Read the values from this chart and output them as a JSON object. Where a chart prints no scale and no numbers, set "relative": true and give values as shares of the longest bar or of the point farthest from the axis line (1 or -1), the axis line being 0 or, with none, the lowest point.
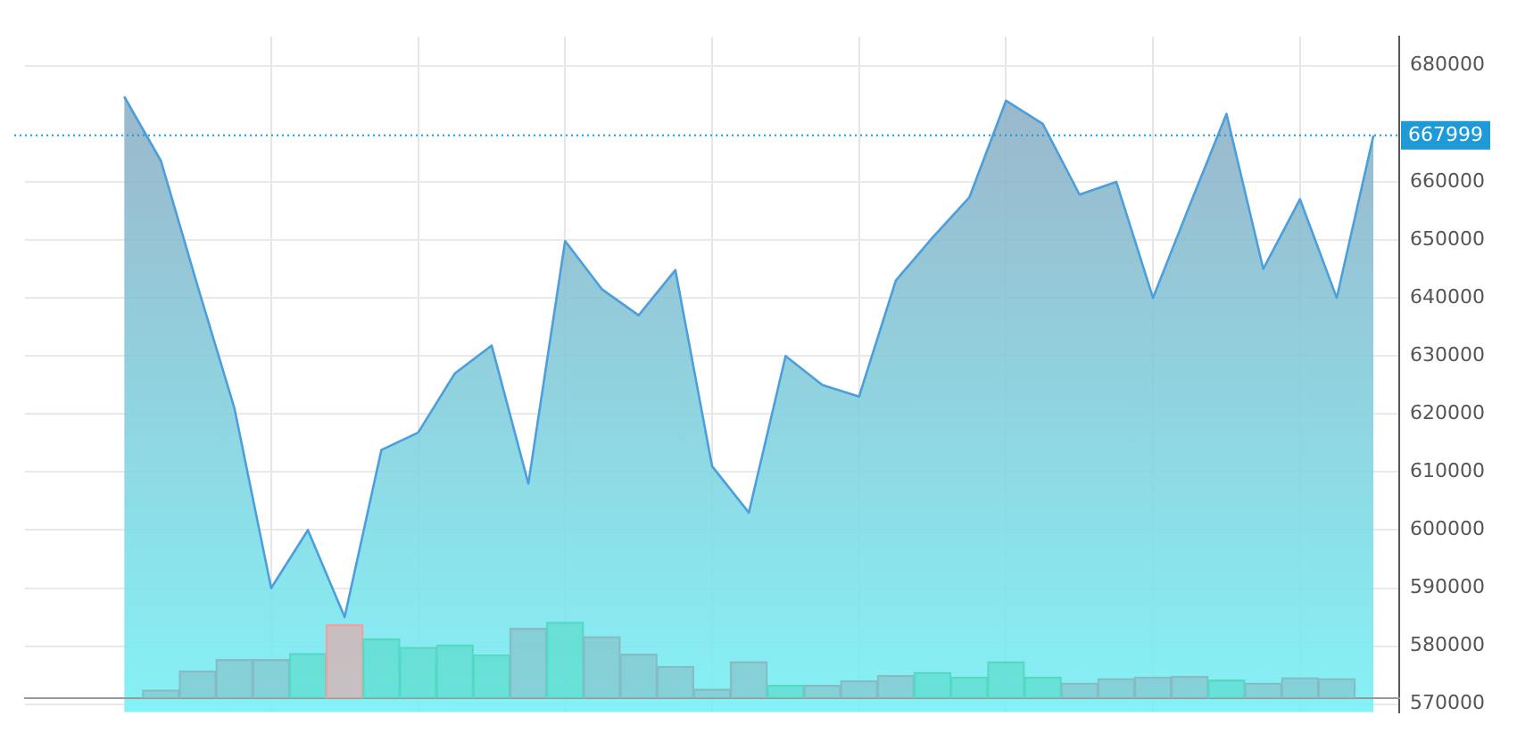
{
  "chart_data": [
    {
      "type": "area",
      "categories": [
        null,
        null,
        null,
        null,
        null,
        null,
        null,
        null,
        null,
        null,
        null,
        null,
        null,
        null,
        null,
        null,
        null,
        null,
        null,
        null,
        null,
        null,
        null,
        null,
        null,
        null,
        null,
        null,
        null,
        null,
        null,
        null,
        null,
        null,
        null
      ],
      "series": [
        {
          "color": "#4a9fdc",
          "values": [
            674700,
            663600,
            642000,
            621000,
            590000,
            600000,
            585000,
            613800,
            616800,
            627000,
            631800,
            608000,
            649800,
            641500,
            637000,
            644800,
            611000,
            603000,
            630000,
            625000,
            623000,
            643000,
            650400,
            657300,
            674000,
            670000,
            657800,
            660000,
            640000,
            656000,
            671700,
            645000,
            657000,
            640000,
            667999
          ]
        }
      ],
      "ylim": [
        568600,
        685000
      ],
      "yticks": [
        570000,
        580000,
        590000,
        600000,
        610000,
        620000,
        630000,
        640000,
        650000,
        660000,
        680000
      ],
      "grid": true,
      "tick_labels": "y",
      "marker": "none",
      "ref_lines": [
        {
          "axis": "y",
          "value": 667999,
          "label": "667999",
          "color": "#1e9ad6",
          "line_style": "dotted"
        }
      ]
    },
    {
      "type": "bar",
      "relative": true,
      "categories": [
        null,
        null,
        null,
        null,
        null,
        null,
        null,
        null,
        null,
        null,
        null,
        null,
        null,
        null,
        null,
        null,
        null,
        null,
        null,
        null,
        null,
        null,
        null,
        null,
        null,
        null,
        null,
        null,
        null,
        null,
        null,
        null,
        null,
        null,
        null
      ],
      "values": [
        null,
        0.11,
        0.36,
        0.51,
        0.51,
        0.59,
        0.97,
        0.78,
        0.67,
        0.7,
        0.57,
        0.92,
        1,
        0.81,
        0.58,
        0.42,
        0.12,
        0.48,
        0.17,
        0.17,
        0.23,
        0.3,
        0.34,
        0.28,
        0.48,
        0.28,
        0.2,
        0.26,
        0.28,
        0.29,
        0.24,
        0.2,
        0.27,
        0.26,
        null
      ],
      "colors": [
        "#86bcc4",
        "#86bcc4",
        "#86bcc4",
        "#86bcc4",
        "#86bcc4",
        "#55d9c4",
        "#f4a0a0",
        "#55d9c4",
        "#55d9c4",
        "#55d9c4",
        "#55d9c4",
        "#86bcc4",
        "#55d9c4",
        "#86bcc4",
        "#86bcc4",
        "#86bcc4",
        "#86bcc4",
        "#86bcc4",
        "#55d9c4",
        "#86bcc4",
        "#86bcc4",
        "#86bcc4",
        "#55d9c4",
        "#55d9c4",
        "#55d9c4",
        "#55d9c4",
        "#86bcc4",
        "#86bcc4",
        "#86bcc4",
        "#86bcc4",
        "#55d9c4",
        "#86bcc4",
        "#86bcc4",
        "#86bcc4",
        "#86bcc4"
      ]
    }
  ]
}
